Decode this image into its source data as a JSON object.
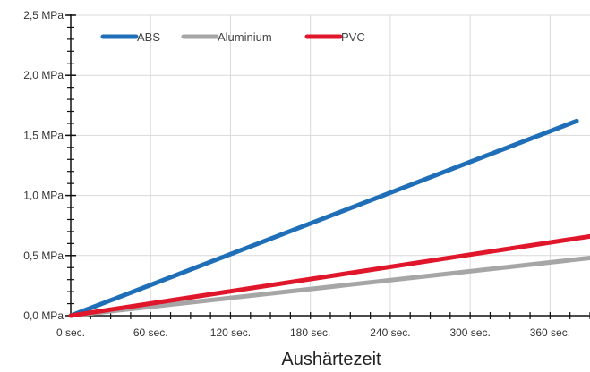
{
  "chart_data": {
    "type": "line",
    "title": "",
    "xlabel": "Aushärtezeit",
    "ylabel": "",
    "x_ticks": [
      {
        "value": 0,
        "label": "0 sec."
      },
      {
        "value": 60,
        "label": "60 sec."
      },
      {
        "value": 120,
        "label": "120 sec."
      },
      {
        "value": 180,
        "label": "180 sec."
      },
      {
        "value": 240,
        "label": "240 sec."
      },
      {
        "value": 300,
        "label": "300 sec."
      },
      {
        "value": 360,
        "label": "360 sec."
      }
    ],
    "y_ticks": [
      {
        "value": 0.0,
        "label": "0,0 MPa"
      },
      {
        "value": 0.5,
        "label": "0,5 MPa"
      },
      {
        "value": 1.0,
        "label": "1,0 MPa"
      },
      {
        "value": 1.5,
        "label": "1,5 MPa"
      },
      {
        "value": 2.0,
        "label": "2,0 MPa"
      },
      {
        "value": 2.5,
        "label": "2,5 MPa"
      }
    ],
    "xlim": [
      0,
      390
    ],
    "ylim": [
      0,
      2.5
    ],
    "grid": true,
    "legend_position": "top-left",
    "series": [
      {
        "name": "ABS",
        "color": "#1f6fb8",
        "x": [
          0,
          380
        ],
        "y": [
          0.0,
          1.62
        ]
      },
      {
        "name": "Aluminium",
        "color": "#a6a6a6",
        "x": [
          0,
          390
        ],
        "y": [
          0.0,
          0.48
        ]
      },
      {
        "name": "PVC",
        "color": "#e0162b",
        "x": [
          0,
          390
        ],
        "y": [
          0.0,
          0.66
        ]
      }
    ]
  }
}
